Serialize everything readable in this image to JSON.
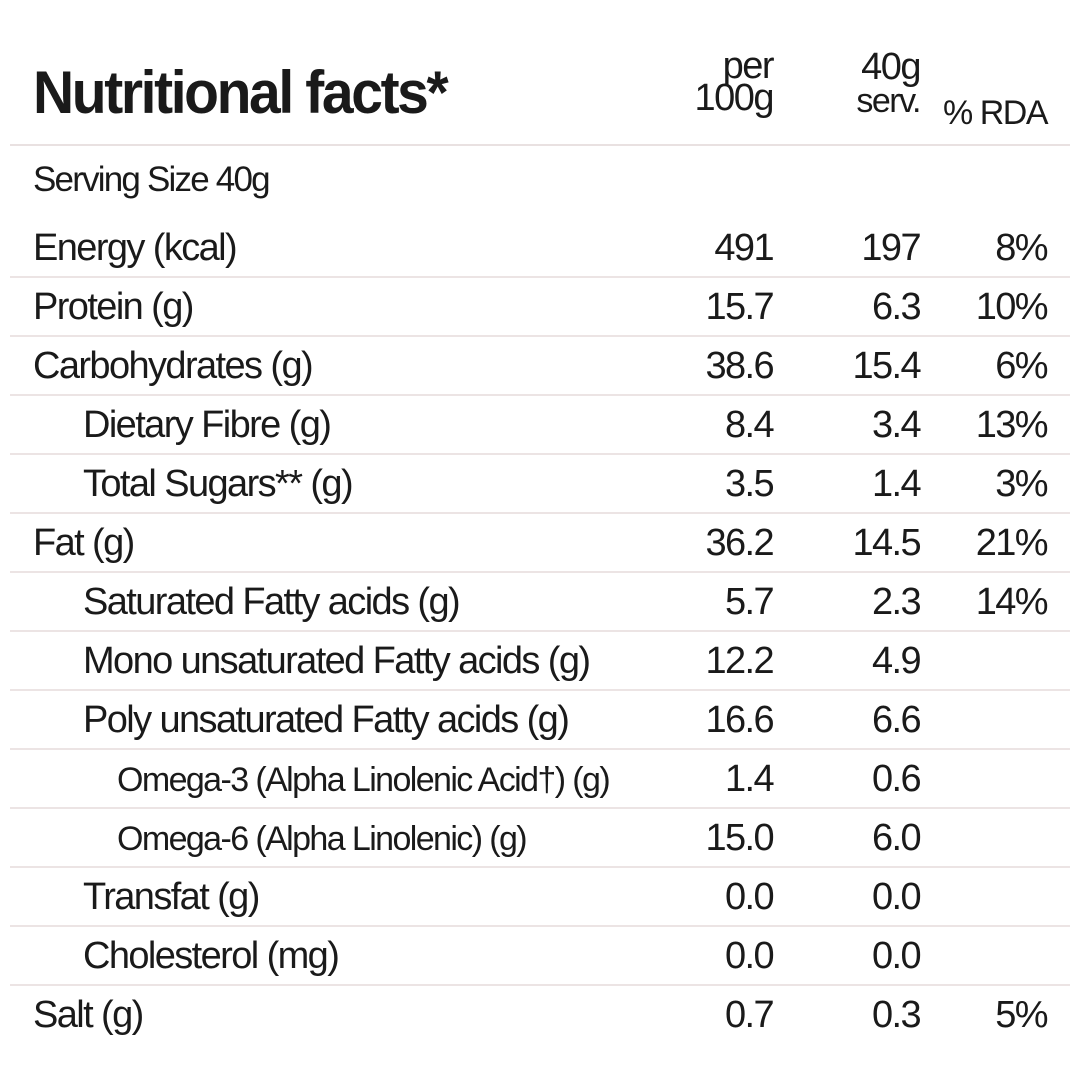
{
  "header": {
    "title": "Nutritional facts*",
    "col1_line1": "per",
    "col1_line2": "100g",
    "col2_line1": "40g",
    "col2_line2": "serv.",
    "col3": "% RDA"
  },
  "serving_size": "Serving Size 40g",
  "rows": [
    {
      "label": "Energy (kcal)",
      "per100g": "491",
      "serving": "197",
      "rda": "8%"
    },
    {
      "label": "Protein (g)",
      "per100g": "15.7",
      "serving": "6.3",
      "rda": "10%"
    },
    {
      "label": "Carbohydrates (g)",
      "per100g": "38.6",
      "serving": "15.4",
      "rda": "6%"
    },
    {
      "label": "Dietary Fibre (g)",
      "per100g": "8.4",
      "serving": "3.4",
      "rda": "13%"
    },
    {
      "label": "Total Sugars** (g)",
      "per100g": "3.5",
      "serving": "1.4",
      "rda": "3%"
    },
    {
      "label": "Fat (g)",
      "per100g": "36.2",
      "serving": "14.5",
      "rda": "21%"
    },
    {
      "label": "Saturated Fatty acids (g)",
      "per100g": "5.7",
      "serving": "2.3",
      "rda": "14%"
    },
    {
      "label": "Mono unsaturated Fatty acids (g)",
      "per100g": "12.2",
      "serving": "4.9",
      "rda": ""
    },
    {
      "label": "Poly unsaturated Fatty acids (g)",
      "per100g": "16.6",
      "serving": "6.6",
      "rda": ""
    },
    {
      "label": "Omega-3 (Alpha Linolenic Acid†) (g)",
      "per100g": "1.4",
      "serving": "0.6",
      "rda": ""
    },
    {
      "label": "Omega-6 (Alpha Linolenic) (g)",
      "per100g": "15.0",
      "serving": "6.0",
      "rda": ""
    },
    {
      "label": "Transfat (g)",
      "per100g": "0.0",
      "serving": "0.0",
      "rda": ""
    },
    {
      "label": "Cholesterol (mg)",
      "per100g": "0.0",
      "serving": "0.0",
      "rda": ""
    },
    {
      "label": "Salt (g)",
      "per100g": "0.7",
      "serving": "0.3",
      "rda": "5%"
    }
  ]
}
